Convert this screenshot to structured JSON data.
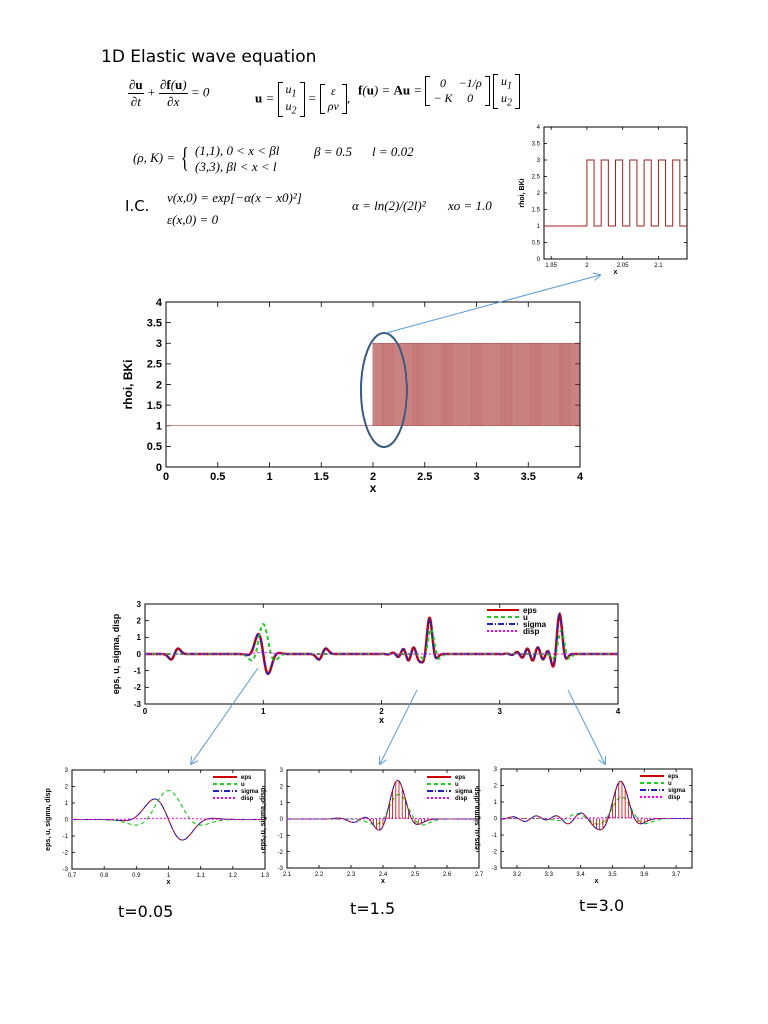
{
  "header": {
    "title": "1D Elastic wave equation",
    "pde": "∂u/∂t + ∂f(u)/∂x = 0",
    "u_def": "u = [u1; u2] = [ε; ρv]",
    "flux_def": "f(u) = Au = [0, −1/ρ; −K, 0][u1; u2]",
    "piece1": "(1,1),   0 < x < βl",
    "piece2": "(3,3),   βl < x < l",
    "beta": "β = 0.5",
    "ell": "l = 0.02",
    "ic_label": "I.C.",
    "ic1": "v(x,0) = exp[−α(x − x0)²]",
    "ic2": "ε(x,0) = 0",
    "alpha": "α = ln(2)/(2l)²",
    "x0": "xo = 1.0"
  },
  "time_labels": [
    "t=0.05",
    "t=1.5",
    "t=3.0"
  ],
  "colors": {
    "eps": "#cc0000",
    "u": "#22cc22",
    "sigma": "#2222bb",
    "disp": "#ee00ee",
    "material": "#a02020",
    "arrow": "#5b9bd5",
    "ellipse": "#3a5a80"
  },
  "chart_data": [
    {
      "id": "material-inset",
      "type": "line",
      "xlabel": "x",
      "ylabel": "rhoi, BKi",
      "xlim": [
        1.94,
        2.14
      ],
      "ylim": [
        0,
        4
      ],
      "xticks": [
        "1.95",
        "2",
        "2.05",
        "2.1"
      ],
      "yticks": [
        "0",
        "0.5",
        "1",
        "1.5",
        "2",
        "2.5",
        "3",
        "3.5",
        "4"
      ],
      "value_left": 1,
      "value_high": 3,
      "value_low": 1,
      "switch_at": 2.0,
      "period": 0.02,
      "grid": false
    },
    {
      "id": "material-main",
      "type": "line",
      "xlabel": "x",
      "ylabel": "rhoi, BKi",
      "xlim": [
        0,
        4
      ],
      "ylim": [
        0,
        4
      ],
      "xticks": [
        "0",
        "0.5",
        "1",
        "1.5",
        "2",
        "2.5",
        "3",
        "3.5",
        "4"
      ],
      "yticks": [
        "0",
        "0.5",
        "1",
        "1.5",
        "2",
        "2.5",
        "3",
        "3.5",
        "4"
      ],
      "value_left": 1,
      "value_high": 3,
      "value_low": 1,
      "switch_at": 2.0,
      "period": 0.02,
      "grid": false
    },
    {
      "id": "wave-main",
      "type": "line",
      "xlabel": "x",
      "ylabel": "eps, u, sigma, disp",
      "xlim": [
        0,
        4
      ],
      "ylim": [
        -3,
        3
      ],
      "xticks": [
        "0",
        "1",
        "2",
        "3",
        "4"
      ],
      "yticks": [
        "-3",
        "-2",
        "-1",
        "0",
        "1",
        "2",
        "3"
      ],
      "legend": [
        "eps",
        "u",
        "sigma",
        "disp"
      ],
      "legend_position": "top-right",
      "grid": false
    },
    {
      "id": "wave-t005",
      "type": "line",
      "xlabel": "x",
      "ylabel": "eps, u, sigma, disp",
      "xlim": [
        0.7,
        1.3
      ],
      "ylim": [
        -3,
        3
      ],
      "xticks": [
        "0.7",
        "0.8",
        "0.9",
        "1",
        "1.1",
        "1.2",
        "1.3"
      ],
      "yticks": [
        "-3",
        "-2",
        "-1",
        "0",
        "1",
        "2",
        "3"
      ],
      "legend": [
        "eps",
        "u",
        "sigma",
        "disp"
      ],
      "legend_position": "top-right",
      "grid": false
    },
    {
      "id": "wave-t15",
      "type": "line",
      "xlabel": "x",
      "ylabel": "eps, u, sigma, disp",
      "xlim": [
        2.1,
        2.7
      ],
      "ylim": [
        -3,
        3
      ],
      "xticks": [
        "2.1",
        "2.2",
        "2.3",
        "2.4",
        "2.5",
        "2.6",
        "2.7"
      ],
      "yticks": [
        "-3",
        "-2",
        "-1",
        "0",
        "1",
        "2",
        "3"
      ],
      "legend": [
        "eps",
        "u",
        "sigma",
        "disp"
      ],
      "legend_position": "top-right",
      "grid": false
    },
    {
      "id": "wave-t30",
      "type": "line",
      "xlabel": "x",
      "ylabel": "eps, u, sigma, disp",
      "xlim": [
        3.15,
        3.75
      ],
      "ylim": [
        -3,
        3
      ],
      "xticks": [
        "3.2",
        "3.3",
        "3.4",
        "3.5",
        "3.6",
        "3.7"
      ],
      "yticks": [
        "-3",
        "-2",
        "-1",
        "0",
        "1",
        "2",
        "3"
      ],
      "legend": [
        "eps",
        "u",
        "sigma",
        "disp"
      ],
      "legend_position": "top-right",
      "grid": false
    }
  ]
}
